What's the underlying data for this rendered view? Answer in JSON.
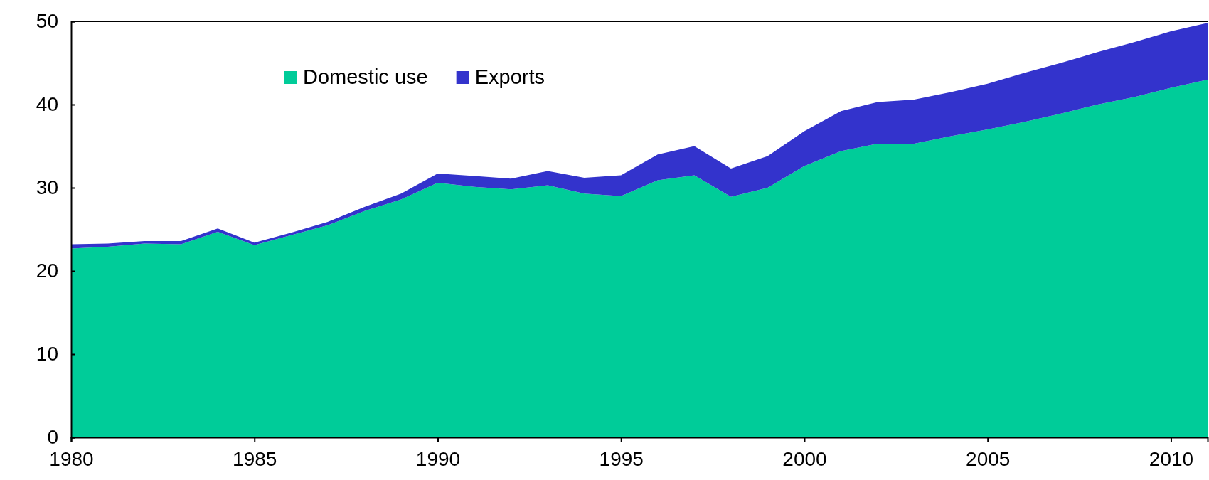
{
  "chart_data": {
    "type": "area",
    "stacked": true,
    "x": [
      1980,
      1981,
      1982,
      1983,
      1984,
      1985,
      1986,
      1987,
      1988,
      1989,
      1990,
      1991,
      1992,
      1993,
      1994,
      1995,
      1996,
      1997,
      1998,
      1999,
      2000,
      2001,
      2002,
      2003,
      2004,
      2005,
      2006,
      2007,
      2008,
      2009,
      2010,
      2011
    ],
    "series": [
      {
        "name": "Domestic use",
        "color": "#00cc99",
        "values": [
          22.7,
          22.9,
          23.3,
          23.2,
          24.7,
          23.1,
          24.3,
          25.5,
          27.2,
          28.6,
          30.6,
          30.1,
          29.8,
          30.3,
          29.3,
          29.0,
          30.9,
          31.5,
          28.9,
          30.0,
          32.6,
          34.4,
          35.3,
          35.3,
          36.2,
          37.0,
          37.9,
          38.9,
          40.0,
          40.9,
          42.0,
          43.0
        ]
      },
      {
        "name": "Exports",
        "color": "#3333cc",
        "values": [
          0.5,
          0.4,
          0.3,
          0.4,
          0.4,
          0.3,
          0.3,
          0.4,
          0.5,
          0.7,
          1.1,
          1.3,
          1.3,
          1.7,
          1.9,
          2.5,
          3.1,
          3.5,
          3.4,
          3.8,
          4.2,
          4.8,
          5.0,
          5.3,
          5.3,
          5.5,
          5.9,
          6.1,
          6.3,
          6.6,
          6.8,
          6.8
        ]
      }
    ],
    "xlim": [
      1980,
      2011
    ],
    "xticks": [
      1980,
      1985,
      1990,
      1995,
      2000,
      2005,
      2010
    ],
    "ylim": [
      0,
      50
    ],
    "yticks": [
      0,
      10,
      20,
      30,
      40,
      50
    ],
    "grid": false,
    "legend": "top left"
  }
}
